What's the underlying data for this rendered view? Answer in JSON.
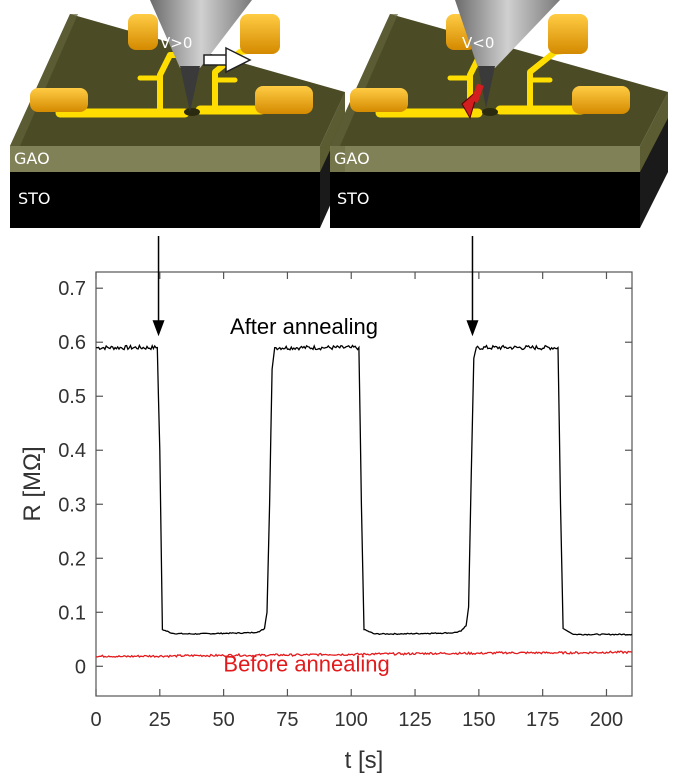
{
  "diagram": {
    "panels": [
      {
        "voltage_label": "V>0",
        "substrate_label": "STO",
        "film_label": "GAO",
        "arrow_color": "#ffffff"
      },
      {
        "voltage_label": "V<0",
        "substrate_label": "STO",
        "film_label": "GAO",
        "arrow_color": "#d21e1e"
      }
    ],
    "colors": {
      "substrate": "#000000",
      "film": "#494a20",
      "electrode": "#ffd600",
      "pad": "#f0a800",
      "tip": "#8a8a8a"
    }
  },
  "chart_data": {
    "type": "line",
    "title": "",
    "xlabel": "t [s]",
    "ylabel": "R [MΩ]",
    "xlim": [
      0,
      210
    ],
    "ylim": [
      -0.055,
      0.73
    ],
    "xticks": [
      0,
      25,
      50,
      75,
      100,
      125,
      150,
      175,
      200
    ],
    "yticks": [
      0,
      0.1,
      0.2,
      0.3,
      0.4,
      0.5,
      0.6,
      0.7
    ],
    "ytick_labels": [
      "0",
      "0.1",
      "0.2",
      "0.3",
      "0.4",
      "0.5",
      "0.6",
      "0.7"
    ],
    "series": [
      {
        "name": "After annealing",
        "color": "#000000",
        "x": [
          0,
          24,
          25,
          26,
          30,
          35,
          40,
          50,
          60,
          64,
          66,
          67,
          68,
          69,
          70,
          80,
          90,
          100,
          103,
          104,
          105,
          109,
          120,
          130,
          140,
          143,
          145,
          146,
          147,
          148,
          149,
          160,
          170,
          181,
          182,
          183,
          187,
          200,
          210
        ],
        "y": [
          0.59,
          0.59,
          0.4,
          0.068,
          0.061,
          0.06,
          0.06,
          0.061,
          0.062,
          0.064,
          0.07,
          0.1,
          0.3,
          0.55,
          0.59,
          0.59,
          0.59,
          0.59,
          0.59,
          0.3,
          0.068,
          0.06,
          0.06,
          0.061,
          0.062,
          0.065,
          0.075,
          0.11,
          0.35,
          0.57,
          0.59,
          0.59,
          0.59,
          0.59,
          0.3,
          0.07,
          0.059,
          0.059,
          0.059
        ]
      },
      {
        "name": "Before annealing",
        "color": "#e31a1c",
        "x": [
          0,
          5,
          10,
          20,
          30,
          40,
          50,
          55,
          60,
          70,
          80,
          90,
          100,
          110,
          120,
          130,
          140,
          150,
          160,
          170,
          180,
          190,
          200,
          210
        ],
        "y": [
          0.018,
          0.019,
          0.018,
          0.019,
          0.019,
          0.02,
          0.02,
          0.021,
          0.02,
          0.021,
          0.021,
          0.022,
          0.022,
          0.023,
          0.023,
          0.024,
          0.024,
          0.024,
          0.025,
          0.025,
          0.025,
          0.025,
          0.026,
          0.026
        ]
      }
    ],
    "annotations": [
      {
        "text": "After annealing",
        "x": 81.5,
        "y": 0.615,
        "color": "#000000"
      },
      {
        "text": "Before annealing",
        "x": 82.5,
        "y": -0.01,
        "color": "#e31a1c"
      }
    ],
    "markers": [
      {
        "x": 24.5,
        "from_y": 0.73,
        "to_y": 0.6
      },
      {
        "x": 147.5,
        "from_y": 0.73,
        "to_y": 0.6
      }
    ]
  }
}
